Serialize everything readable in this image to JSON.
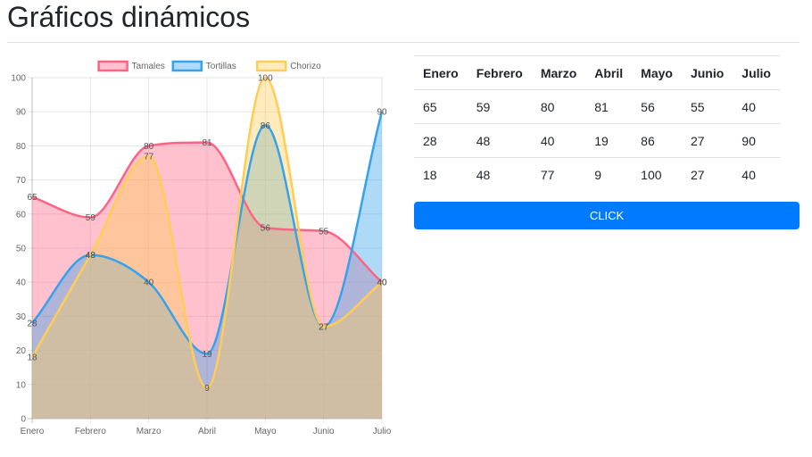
{
  "page": {
    "title": "Gráficos dinámicos"
  },
  "chart_data": {
    "type": "line",
    "area": true,
    "smooth": true,
    "categories": [
      "Enero",
      "Febrero",
      "Marzo",
      "Abril",
      "Mayo",
      "Junio",
      "Julio"
    ],
    "series": [
      {
        "name": "Tamales",
        "values": [
          65,
          59,
          80,
          81,
          56,
          55,
          40
        ],
        "color": "#ff6384",
        "fill": "rgba(255,99,132,0.4)"
      },
      {
        "name": "Tortillas",
        "values": [
          28,
          48,
          40,
          19,
          86,
          27,
          90
        ],
        "color": "#36a2eb",
        "fill": "rgba(54,162,235,0.4)"
      },
      {
        "name": "Chorizo",
        "values": [
          18,
          48,
          77,
          9,
          100,
          27,
          40
        ],
        "color": "#ffcd56",
        "fill": "rgba(255,205,86,0.4)"
      }
    ],
    "yticks": [
      0,
      10,
      20,
      30,
      40,
      50,
      60,
      70,
      80,
      90,
      100
    ],
    "ylim": [
      0,
      100
    ],
    "grid": true,
    "legend": "top"
  },
  "table": {
    "headers": [
      "Enero",
      "Febrero",
      "Marzo",
      "Abril",
      "Mayo",
      "Junio",
      "Julio"
    ],
    "rows": [
      [
        "65",
        "59",
        "80",
        "81",
        "56",
        "55",
        "40"
      ],
      [
        "28",
        "48",
        "40",
        "19",
        "86",
        "27",
        "90"
      ],
      [
        "18",
        "48",
        "77",
        "9",
        "100",
        "27",
        "40"
      ]
    ]
  },
  "button": {
    "label": "CLICK",
    "color": "#007bff"
  }
}
